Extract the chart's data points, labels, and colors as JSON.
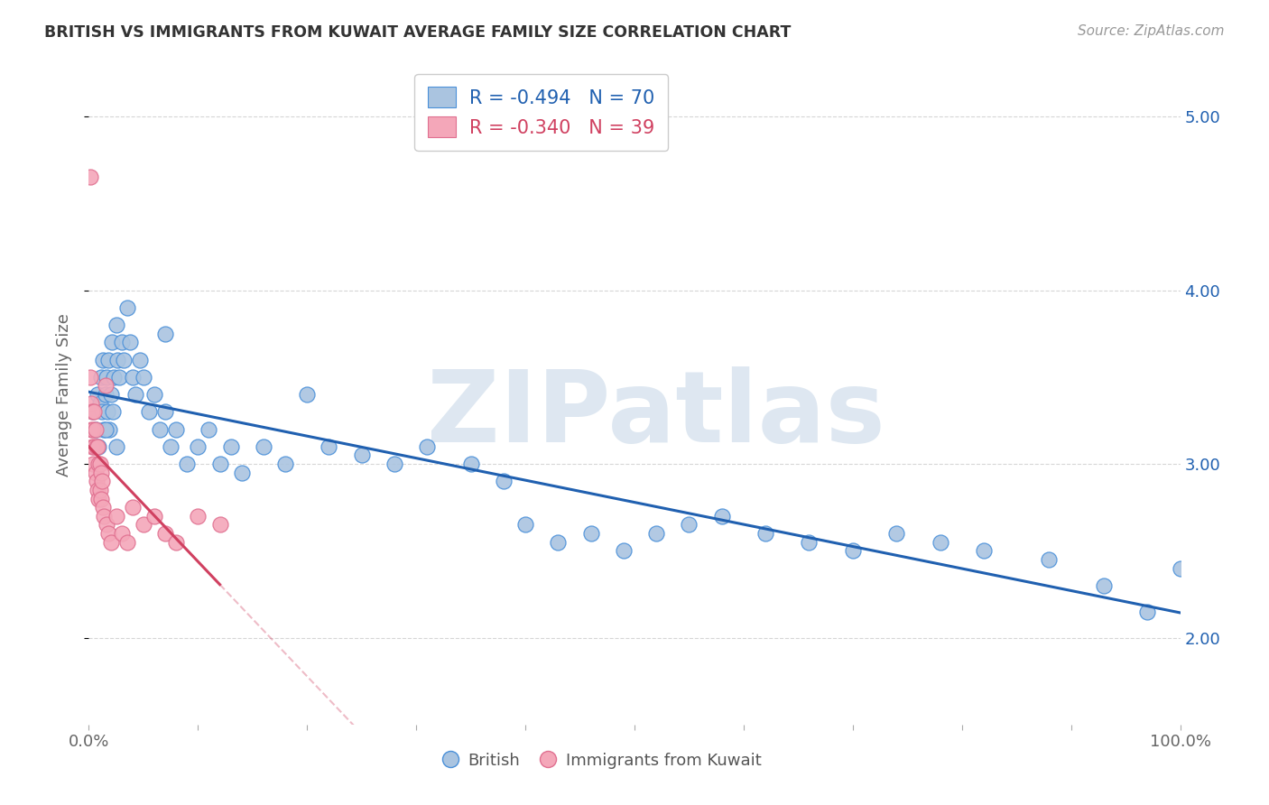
{
  "title": "BRITISH VS IMMIGRANTS FROM KUWAIT AVERAGE FAMILY SIZE CORRELATION CHART",
  "source": "Source: ZipAtlas.com",
  "ylabel": "Average Family Size",
  "xlim": [
    0,
    1.0
  ],
  "ylim": [
    1.5,
    5.3
  ],
  "xtick_positions": [
    0.0,
    0.1,
    0.2,
    0.3,
    0.4,
    0.5,
    0.6,
    0.7,
    0.8,
    0.9,
    1.0
  ],
  "xticklabels": [
    "0.0%",
    "",
    "",
    "",
    "",
    "",
    "",
    "",
    "",
    "",
    "100.0%"
  ],
  "yticks": [
    2.0,
    3.0,
    4.0,
    5.0
  ],
  "yticklabels_right": [
    "2.00",
    "3.00",
    "4.00",
    "5.00"
  ],
  "british_color": "#aac4e0",
  "kuwait_color": "#f4a7b9",
  "british_edge_color": "#4a90d9",
  "kuwait_edge_color": "#e07090",
  "british_line_color": "#2060b0",
  "kuwait_line_color": "#d04060",
  "british_R": "-0.494",
  "british_N": "70",
  "kuwait_R": "-0.340",
  "kuwait_N": "39",
  "watermark": "ZIPatlas",
  "watermark_color": "#c8d8e8",
  "background_color": "#ffffff",
  "grid_color": "#cccccc",
  "legend_text_color": "#2060b0",
  "british_x": [
    0.004,
    0.006,
    0.008,
    0.009,
    0.01,
    0.011,
    0.012,
    0.013,
    0.014,
    0.015,
    0.016,
    0.017,
    0.018,
    0.019,
    0.02,
    0.021,
    0.022,
    0.023,
    0.025,
    0.026,
    0.028,
    0.03,
    0.032,
    0.035,
    0.038,
    0.04,
    0.043,
    0.047,
    0.05,
    0.055,
    0.06,
    0.065,
    0.07,
    0.075,
    0.08,
    0.09,
    0.1,
    0.11,
    0.12,
    0.13,
    0.14,
    0.16,
    0.18,
    0.2,
    0.22,
    0.25,
    0.28,
    0.31,
    0.35,
    0.38,
    0.4,
    0.43,
    0.46,
    0.49,
    0.52,
    0.55,
    0.58,
    0.62,
    0.66,
    0.7,
    0.74,
    0.78,
    0.82,
    0.88,
    0.93,
    0.97,
    1.0,
    0.015,
    0.025,
    0.07
  ],
  "british_y": [
    3.3,
    3.2,
    3.4,
    3.1,
    3.35,
    3.5,
    3.3,
    3.6,
    3.2,
    3.4,
    3.5,
    3.3,
    3.6,
    3.2,
    3.4,
    3.7,
    3.3,
    3.5,
    3.8,
    3.6,
    3.5,
    3.7,
    3.6,
    3.9,
    3.7,
    3.5,
    3.4,
    3.6,
    3.5,
    3.3,
    3.4,
    3.2,
    3.3,
    3.1,
    3.2,
    3.0,
    3.1,
    3.2,
    3.0,
    3.1,
    2.95,
    3.1,
    3.0,
    3.4,
    3.1,
    3.05,
    3.0,
    3.1,
    3.0,
    2.9,
    2.65,
    2.55,
    2.6,
    2.5,
    2.6,
    2.65,
    2.7,
    2.6,
    2.55,
    2.5,
    2.6,
    2.55,
    2.5,
    2.45,
    2.3,
    2.15,
    2.4,
    3.2,
    3.1,
    3.75
  ],
  "kuwait_x": [
    0.001,
    0.002,
    0.002,
    0.003,
    0.003,
    0.004,
    0.004,
    0.005,
    0.005,
    0.006,
    0.006,
    0.007,
    0.007,
    0.008,
    0.008,
    0.009,
    0.009,
    0.01,
    0.01,
    0.011,
    0.011,
    0.012,
    0.013,
    0.014,
    0.015,
    0.016,
    0.018,
    0.02,
    0.025,
    0.03,
    0.035,
    0.04,
    0.05,
    0.06,
    0.07,
    0.08,
    0.1,
    0.12,
    0.001
  ],
  "kuwait_y": [
    3.5,
    3.35,
    3.2,
    3.3,
    3.1,
    3.2,
    3.0,
    3.3,
    3.1,
    3.2,
    2.95,
    3.1,
    2.9,
    3.1,
    2.85,
    3.0,
    2.8,
    3.0,
    2.85,
    2.95,
    2.8,
    2.9,
    2.75,
    2.7,
    3.45,
    2.65,
    2.6,
    2.55,
    2.7,
    2.6,
    2.55,
    2.75,
    2.65,
    2.7,
    2.6,
    2.55,
    2.7,
    2.65,
    4.65
  ]
}
